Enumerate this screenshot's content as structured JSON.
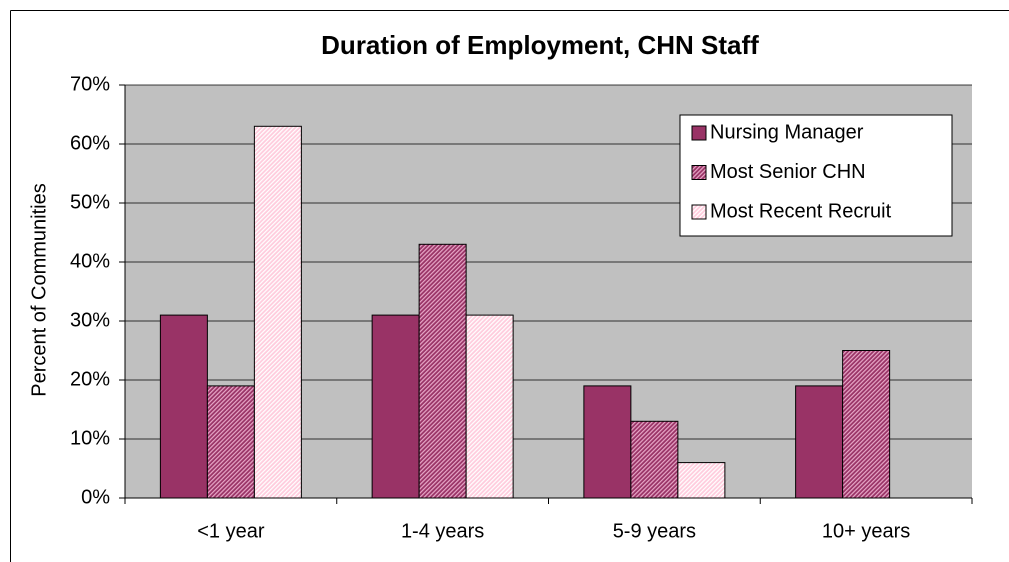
{
  "chart_data": {
    "type": "bar",
    "title": "Duration of Employment, CHN Staff",
    "y_label": "Percent of Communities",
    "categories": [
      "<1 year",
      "1-4 years",
      "5-9 years",
      "10+ years"
    ],
    "series": [
      {
        "name": "Nursing Manager",
        "color": "#993366",
        "fill_style": "solid",
        "values": [
          31,
          31,
          19,
          19
        ]
      },
      {
        "name": "Most Senior CHN",
        "color": "#993366",
        "fill_style": "hatched",
        "values": [
          19,
          43,
          13,
          25
        ]
      },
      {
        "name": "Most Recent Recruit",
        "color": "#ffccdd",
        "fill_style": "hatched",
        "values": [
          63,
          31,
          6,
          0
        ]
      }
    ],
    "ylim": [
      0,
      70
    ],
    "yticks": [
      {
        "value": 0,
        "label": "0%"
      },
      {
        "value": 10,
        "label": "10%"
      },
      {
        "value": 20,
        "label": "20%"
      },
      {
        "value": 30,
        "label": "30%"
      },
      {
        "value": 40,
        "label": "40%"
      },
      {
        "value": 50,
        "label": "50%"
      },
      {
        "value": 60,
        "label": "60%"
      },
      {
        "value": 70,
        "label": "70%"
      }
    ],
    "grid": true,
    "legend": "upper right",
    "plot_background": "#c0c0c0"
  }
}
